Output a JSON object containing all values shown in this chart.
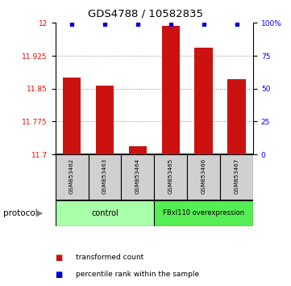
{
  "title": "GDS4788 / 10582835",
  "samples": [
    "GSM853462",
    "GSM853463",
    "GSM853464",
    "GSM853465",
    "GSM853466",
    "GSM853467"
  ],
  "red_values": [
    11.875,
    11.856,
    11.718,
    11.993,
    11.943,
    11.872
  ],
  "ylim_left": [
    11.7,
    12.0
  ],
  "ylim_right": [
    0,
    100
  ],
  "yticks_left": [
    11.7,
    11.775,
    11.85,
    11.925,
    12.0
  ],
  "yticks_right": [
    0,
    25,
    50,
    75,
    100
  ],
  "ytick_labels_left": [
    "11.7",
    "11.775",
    "11.85",
    "11.925",
    "12"
  ],
  "ytick_labels_right": [
    "0",
    "25",
    "50",
    "75",
    "100%"
  ],
  "bar_color": "#cc1111",
  "dot_color": "#0000cc",
  "bar_width": 0.55,
  "grid_color": "#888888",
  "ctrl_color": "#aaffaa",
  "fbxl_color": "#55ee55",
  "sample_box_color": "#d0d0d0",
  "protocol_label": "protocol",
  "legend_items": [
    {
      "color": "#cc1111",
      "label": "transformed count"
    },
    {
      "color": "#0000cc",
      "label": "percentile rank within the sample"
    }
  ]
}
